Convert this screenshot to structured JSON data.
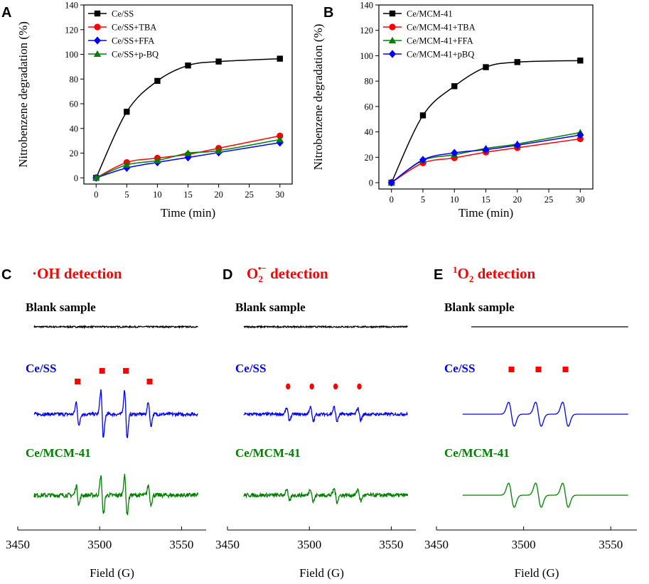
{
  "figure": {
    "background": "#ffffff"
  },
  "chart_data": [
    {
      "type": "line",
      "panel": "A",
      "title": "",
      "xlabel": "Time (min)",
      "ylabel": "Nitrobenzene degradation (%)",
      "xlim": [
        -2,
        32
      ],
      "ylim": [
        -5,
        140
      ],
      "xticks": [
        0,
        5,
        10,
        15,
        20,
        25,
        30
      ],
      "yticks": [
        0,
        20,
        40,
        60,
        80,
        100,
        120,
        140
      ],
      "legend_position": "top-left",
      "x": [
        0,
        5,
        10,
        15,
        20,
        30
      ],
      "series": [
        {
          "name": "Ce/SS",
          "color": "#000000",
          "marker": "square",
          "values": [
            0,
            53.5,
            78.5,
            91,
            94.2,
            96.5
          ]
        },
        {
          "name": "Ce/SS+TBA",
          "color": "#ff0000",
          "marker": "circle",
          "values": [
            0,
            12.5,
            16,
            19,
            24,
            34
          ]
        },
        {
          "name": "Ce/SS+FFA",
          "color": "#0000ff",
          "marker": "diamond",
          "values": [
            0,
            8,
            12.5,
            16.5,
            20.5,
            28.5
          ]
        },
        {
          "name": "Ce/SS+p-BQ",
          "color": "#008000",
          "marker": "triangle",
          "values": [
            0,
            10.5,
            14,
            20,
            22,
            31
          ]
        }
      ]
    },
    {
      "type": "line",
      "panel": "B",
      "title": "",
      "xlabel": "Time (min)",
      "ylabel": "Nitrobenzene degradation (%)",
      "xlim": [
        -2,
        32
      ],
      "ylim": [
        -5,
        140
      ],
      "xticks": [
        0,
        5,
        10,
        15,
        20,
        25,
        30
      ],
      "yticks": [
        0,
        20,
        40,
        60,
        80,
        100,
        120,
        140
      ],
      "legend_position": "top-left",
      "x": [
        0,
        5,
        10,
        15,
        20,
        30
      ],
      "series": [
        {
          "name": "Ce/MCM-41",
          "color": "#000000",
          "marker": "square",
          "values": [
            0,
            53,
            76,
            91,
            95,
            96.2
          ]
        },
        {
          "name": "Ce/MCM-41+TBA",
          "color": "#ff0000",
          "marker": "circle",
          "values": [
            0,
            15.5,
            19.5,
            24,
            27.5,
            34.5
          ]
        },
        {
          "name": "Ce/MCM-41+FFA",
          "color": "#008000",
          "marker": "triangle",
          "values": [
            0,
            17.5,
            22,
            27,
            30.5,
            39.5
          ]
        },
        {
          "name": "Ce/MCM-41+pBQ",
          "color": "#0000ff",
          "marker": "diamond",
          "values": [
            0,
            18,
            23.5,
            26,
            29.5,
            37.5
          ]
        }
      ]
    },
    {
      "type": "line",
      "panel": "C",
      "title_parts": {
        "prefix": "·OH detection",
        "main": "",
        "sup": "",
        "sub": ""
      },
      "xlabel": "Field (G)",
      "xlim": [
        3450,
        3565
      ],
      "xticks": [
        3450,
        3500,
        3550
      ],
      "x_range": [
        3460,
        3560
      ],
      "traces": [
        {
          "name": "Blank sample",
          "color": "#000000",
          "label_color": "#000000",
          "kind": "noise",
          "noise": 0.15,
          "peaks": [],
          "peak_marks": []
        },
        {
          "name": "Ce/SS",
          "color": "#0000ff",
          "label_color": "#0000ff",
          "kind": "epr",
          "noise": 0.35,
          "peaks": [
            3486.5,
            3501.5,
            3516,
            3530.5
          ],
          "amplitudes": [
            1,
            2,
            2,
            1
          ],
          "width": 0.8,
          "peak_marks": [
            3486.5,
            3501.5,
            3516,
            3530.5
          ],
          "mark_shape": "square"
        },
        {
          "name": "Ce/MCM-41",
          "color": "#008000",
          "label_color": "#008000",
          "kind": "epr",
          "noise": 0.45,
          "peaks": [
            3486.5,
            3501.5,
            3516,
            3530.5
          ],
          "amplitudes": [
            0.8,
            1.6,
            1.6,
            0.8
          ],
          "width": 0.8,
          "peak_marks": []
        }
      ]
    },
    {
      "type": "line",
      "panel": "D",
      "title_parts": {
        "prefix": "",
        "main": "O",
        "sub": "2",
        "sup": "•−",
        "suffix": " detection"
      },
      "xlabel": "Field (G)",
      "xlim": [
        3450,
        3565
      ],
      "xticks": [
        3450,
        3500,
        3550
      ],
      "x_range": [
        3460,
        3560
      ],
      "traces": [
        {
          "name": "Blank sample",
          "color": "#000000",
          "label_color": "#000000",
          "kind": "noise",
          "noise": 0.15,
          "peaks": [],
          "peak_marks": []
        },
        {
          "name": "Ce/SS",
          "color": "#0000ff",
          "label_color": "#0000ff",
          "kind": "epr",
          "noise": 0.3,
          "peaks": [
            3487,
            3501.5,
            3516,
            3530.5
          ],
          "amplitudes": [
            0.5,
            0.6,
            0.6,
            0.5
          ],
          "width": 0.9,
          "peak_marks": [
            3487,
            3501.5,
            3516,
            3530.5
          ],
          "mark_shape": "circle"
        },
        {
          "name": "Ce/MCM-41",
          "color": "#008000",
          "label_color": "#008000",
          "kind": "epr",
          "noise": 0.4,
          "peaks": [
            3487,
            3501.5,
            3516,
            3530.5
          ],
          "amplitudes": [
            0.5,
            0.55,
            0.55,
            0.5
          ],
          "width": 0.9,
          "peak_marks": []
        }
      ]
    },
    {
      "type": "line",
      "panel": "E",
      "title_parts": {
        "prefix": "",
        "main": "O",
        "sub": "2",
        "sup": "1",
        "suffix": " detection",
        "sup_first": true
      },
      "xlabel": "Field (G)",
      "xlim": [
        3450,
        3565
      ],
      "xticks": [
        3450,
        3500,
        3550
      ],
      "x_range": [
        3465,
        3560
      ],
      "traces": [
        {
          "name": "Blank sample",
          "color": "#000000",
          "label_color": "#000000",
          "kind": "flat",
          "noise": 0,
          "peaks": [],
          "peak_marks": []
        },
        {
          "name": "Ce/SS",
          "color": "#0000ff",
          "label_color": "#0000ff",
          "kind": "epr",
          "noise": 0,
          "peaks": [
            3493,
            3508.5,
            3524
          ],
          "amplitudes": [
            1,
            1,
            1
          ],
          "width": 1.6,
          "peak_marks": [
            3493,
            3508.5,
            3524
          ],
          "mark_shape": "square"
        },
        {
          "name": "Ce/MCM-41",
          "color": "#008000",
          "label_color": "#008000",
          "kind": "epr",
          "noise": 0,
          "peaks": [
            3493,
            3508.5,
            3524
          ],
          "amplitudes": [
            1,
            1,
            1
          ],
          "width": 1.6,
          "peak_marks": []
        }
      ]
    }
  ]
}
